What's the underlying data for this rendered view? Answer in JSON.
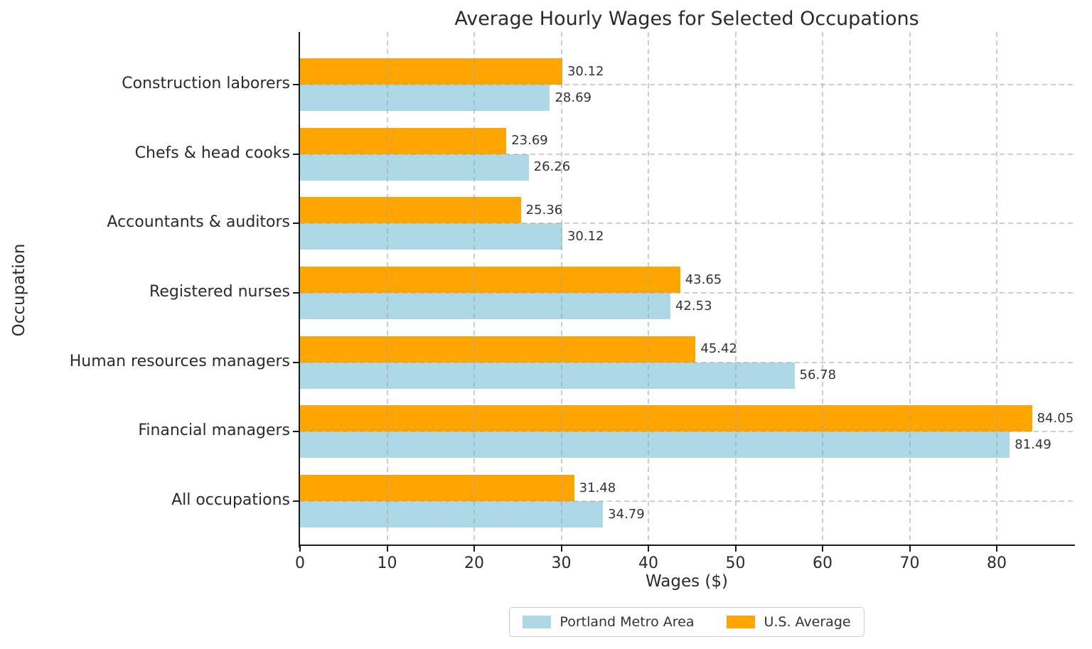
{
  "chart_data": {
    "type": "bar",
    "orientation": "horizontal",
    "title": "Average Hourly Wages for Selected Occupations",
    "xlabel": "Wages ($)",
    "ylabel": "Occupation",
    "categories": [
      "Construction laborers",
      "Chefs & head cooks",
      "Accountants & auditors",
      "Registered nurses",
      "Human resources managers",
      "Financial managers",
      "All occupations"
    ],
    "series": [
      {
        "name": "Portland Metro Area",
        "color": "#ADD8E6",
        "values": [
          28.69,
          26.26,
          30.12,
          42.53,
          56.78,
          81.49,
          34.79
        ]
      },
      {
        "name": "U.S. Average",
        "color": "#FFA500",
        "values": [
          30.12,
          23.69,
          25.36,
          43.65,
          45.42,
          84.05,
          31.48
        ]
      }
    ],
    "xlim": [
      0,
      88.8
    ],
    "xticks": [
      0,
      10,
      20,
      30,
      40,
      50,
      60,
      70,
      80
    ],
    "grid": true,
    "grid_style": "dashed",
    "legend_position": "bottom-center",
    "value_label_decimals": 2
  },
  "colors": {
    "portland": "#ADD8E6",
    "us_average": "#FFA500",
    "spine": "#1a1a1a",
    "grid": "#a5a5a5",
    "text": "#2b2b2b",
    "value_label": "#333333",
    "background": "#ffffff"
  }
}
